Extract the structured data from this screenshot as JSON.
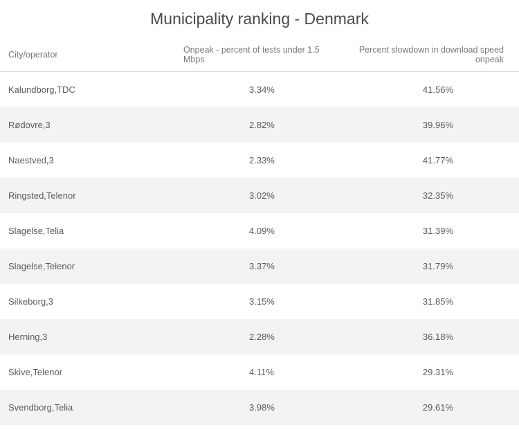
{
  "title": "Municipality ranking - Denmark",
  "columns": {
    "city": "City/operator",
    "tests": "Onpeak - percent of tests under 1.5 Mbps",
    "slowdown": "Percent slowdown in download speed onpeak"
  },
  "rows": [
    {
      "city": "Kalundborg,TDC",
      "tests": "3.34%",
      "slowdown": "41.56%"
    },
    {
      "city": "Rødovre,3",
      "tests": "2.82%",
      "slowdown": "39.96%"
    },
    {
      "city": "Naestved,3",
      "tests": "2.33%",
      "slowdown": "41.77%"
    },
    {
      "city": "Ringsted,Telenor",
      "tests": "3.02%",
      "slowdown": "32.35%"
    },
    {
      "city": "Slagelse,Telia",
      "tests": "4.09%",
      "slowdown": "31.39%"
    },
    {
      "city": "Slagelse,Telenor",
      "tests": "3.37%",
      "slowdown": "31.79%"
    },
    {
      "city": "Silkeborg,3",
      "tests": "3.15%",
      "slowdown": "31.85%"
    },
    {
      "city": "Herning,3",
      "tests": "2.28%",
      "slowdown": "36.18%"
    },
    {
      "city": "Skive,Telenor",
      "tests": "4.11%",
      "slowdown": "29.31%"
    },
    {
      "city": "Svendborg,Telia",
      "tests": "3.98%",
      "slowdown": "29.61%"
    }
  ],
  "styling": {
    "title_color": "#4a4a4a",
    "header_text_color": "#787878",
    "body_text_color": "#5a5a5a",
    "header_border_color": "#d9d9d9",
    "row_even_bg": "#f3f3f4",
    "row_odd_bg": "#ffffff",
    "title_fontsize": 23,
    "header_fontsize": 12.5,
    "body_fontsize": 13
  }
}
